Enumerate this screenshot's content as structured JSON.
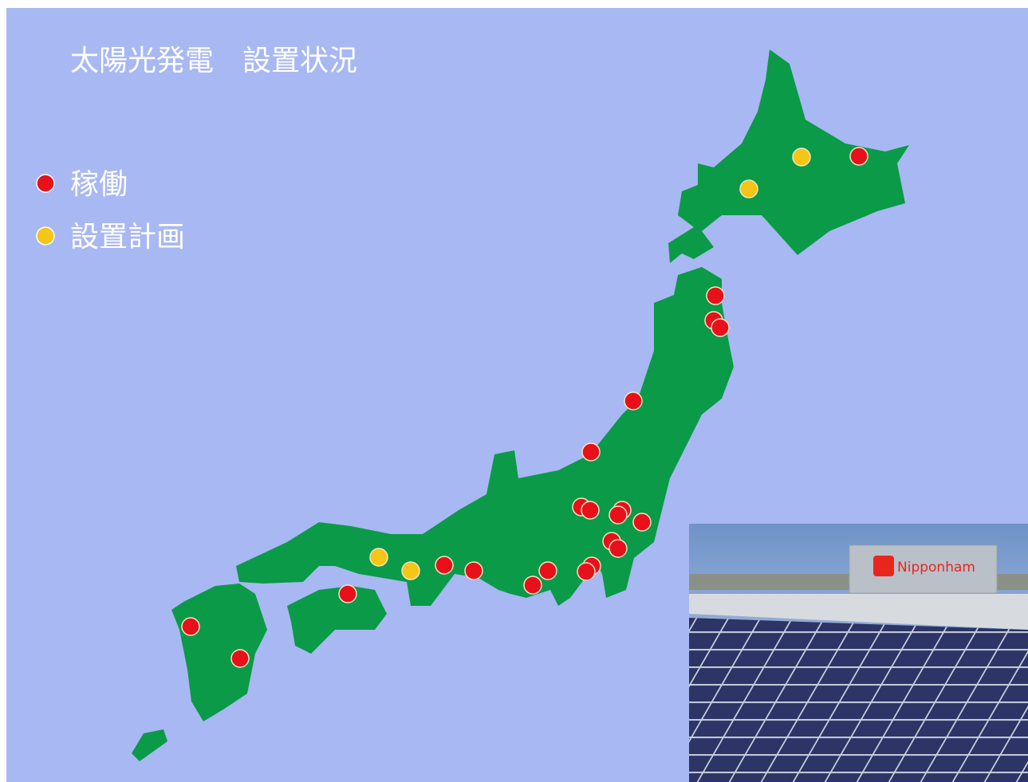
{
  "header": {
    "title": "太陽光発電　設置状況"
  },
  "legend": [
    {
      "label": "稼働",
      "color": "#e8101a"
    },
    {
      "label": "設置計画",
      "color": "#f5c518"
    }
  ],
  "photo": {
    "sign": "Nipponham"
  }
}
